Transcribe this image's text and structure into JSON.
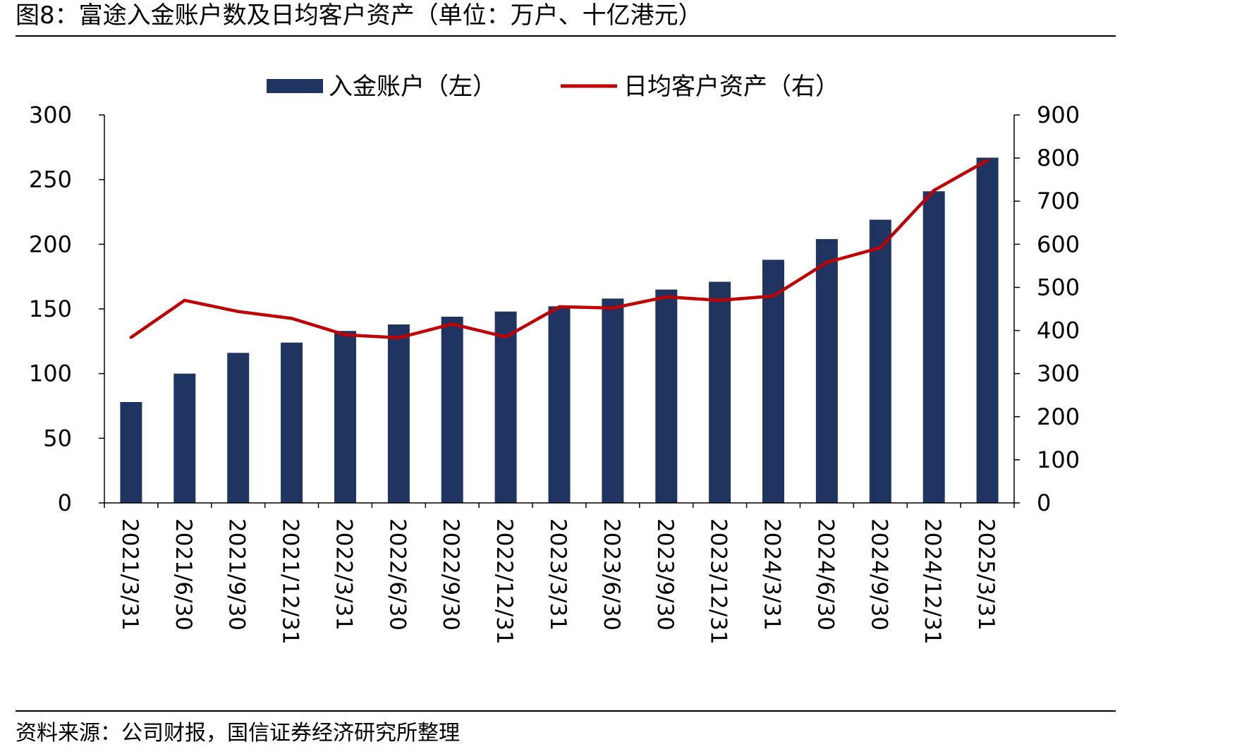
{
  "figure": {
    "title": "图8：富途入金账户数及日均客户资产（单位：万户、十亿港元）",
    "source": "资料来源：公司财报，国信证券经济研究所整理"
  },
  "colors": {
    "bar": "#1f3461",
    "line": "#c00000",
    "axis": "#000000"
  },
  "chart_data": {
    "type": "bar",
    "categories": [
      "2021/3/31",
      "2021/6/30",
      "2021/9/30",
      "2021/12/31",
      "2022/3/31",
      "2022/6/30",
      "2022/9/30",
      "2022/12/31",
      "2023/3/31",
      "2023/6/30",
      "2023/9/30",
      "2023/12/31",
      "2024/3/31",
      "2024/6/30",
      "2024/9/30",
      "2024/12/31",
      "2025/3/31"
    ],
    "series": [
      {
        "name": "入金账户（左）",
        "type": "bar",
        "axis": "left",
        "values": [
          78,
          100,
          116,
          124,
          133,
          138,
          144,
          148,
          152,
          158,
          165,
          171,
          188,
          204,
          219,
          241,
          267
        ]
      },
      {
        "name": "日均客户资产（右）",
        "type": "line",
        "axis": "right",
        "values": [
          384,
          470,
          444,
          428,
          390,
          383,
          415,
          385,
          455,
          452,
          478,
          470,
          480,
          558,
          592,
          725,
          795
        ]
      }
    ],
    "y_left": {
      "ylim": [
        0,
        300
      ],
      "ticks": [
        "0",
        "50",
        "100",
        "150",
        "200",
        "250",
        "300"
      ]
    },
    "y_right": {
      "ylim": [
        0,
        900
      ],
      "ticks": [
        "0",
        "100",
        "200",
        "300",
        "400",
        "500",
        "600",
        "700",
        "800",
        "900"
      ]
    },
    "legend_position": "top-center",
    "grid": false
  }
}
